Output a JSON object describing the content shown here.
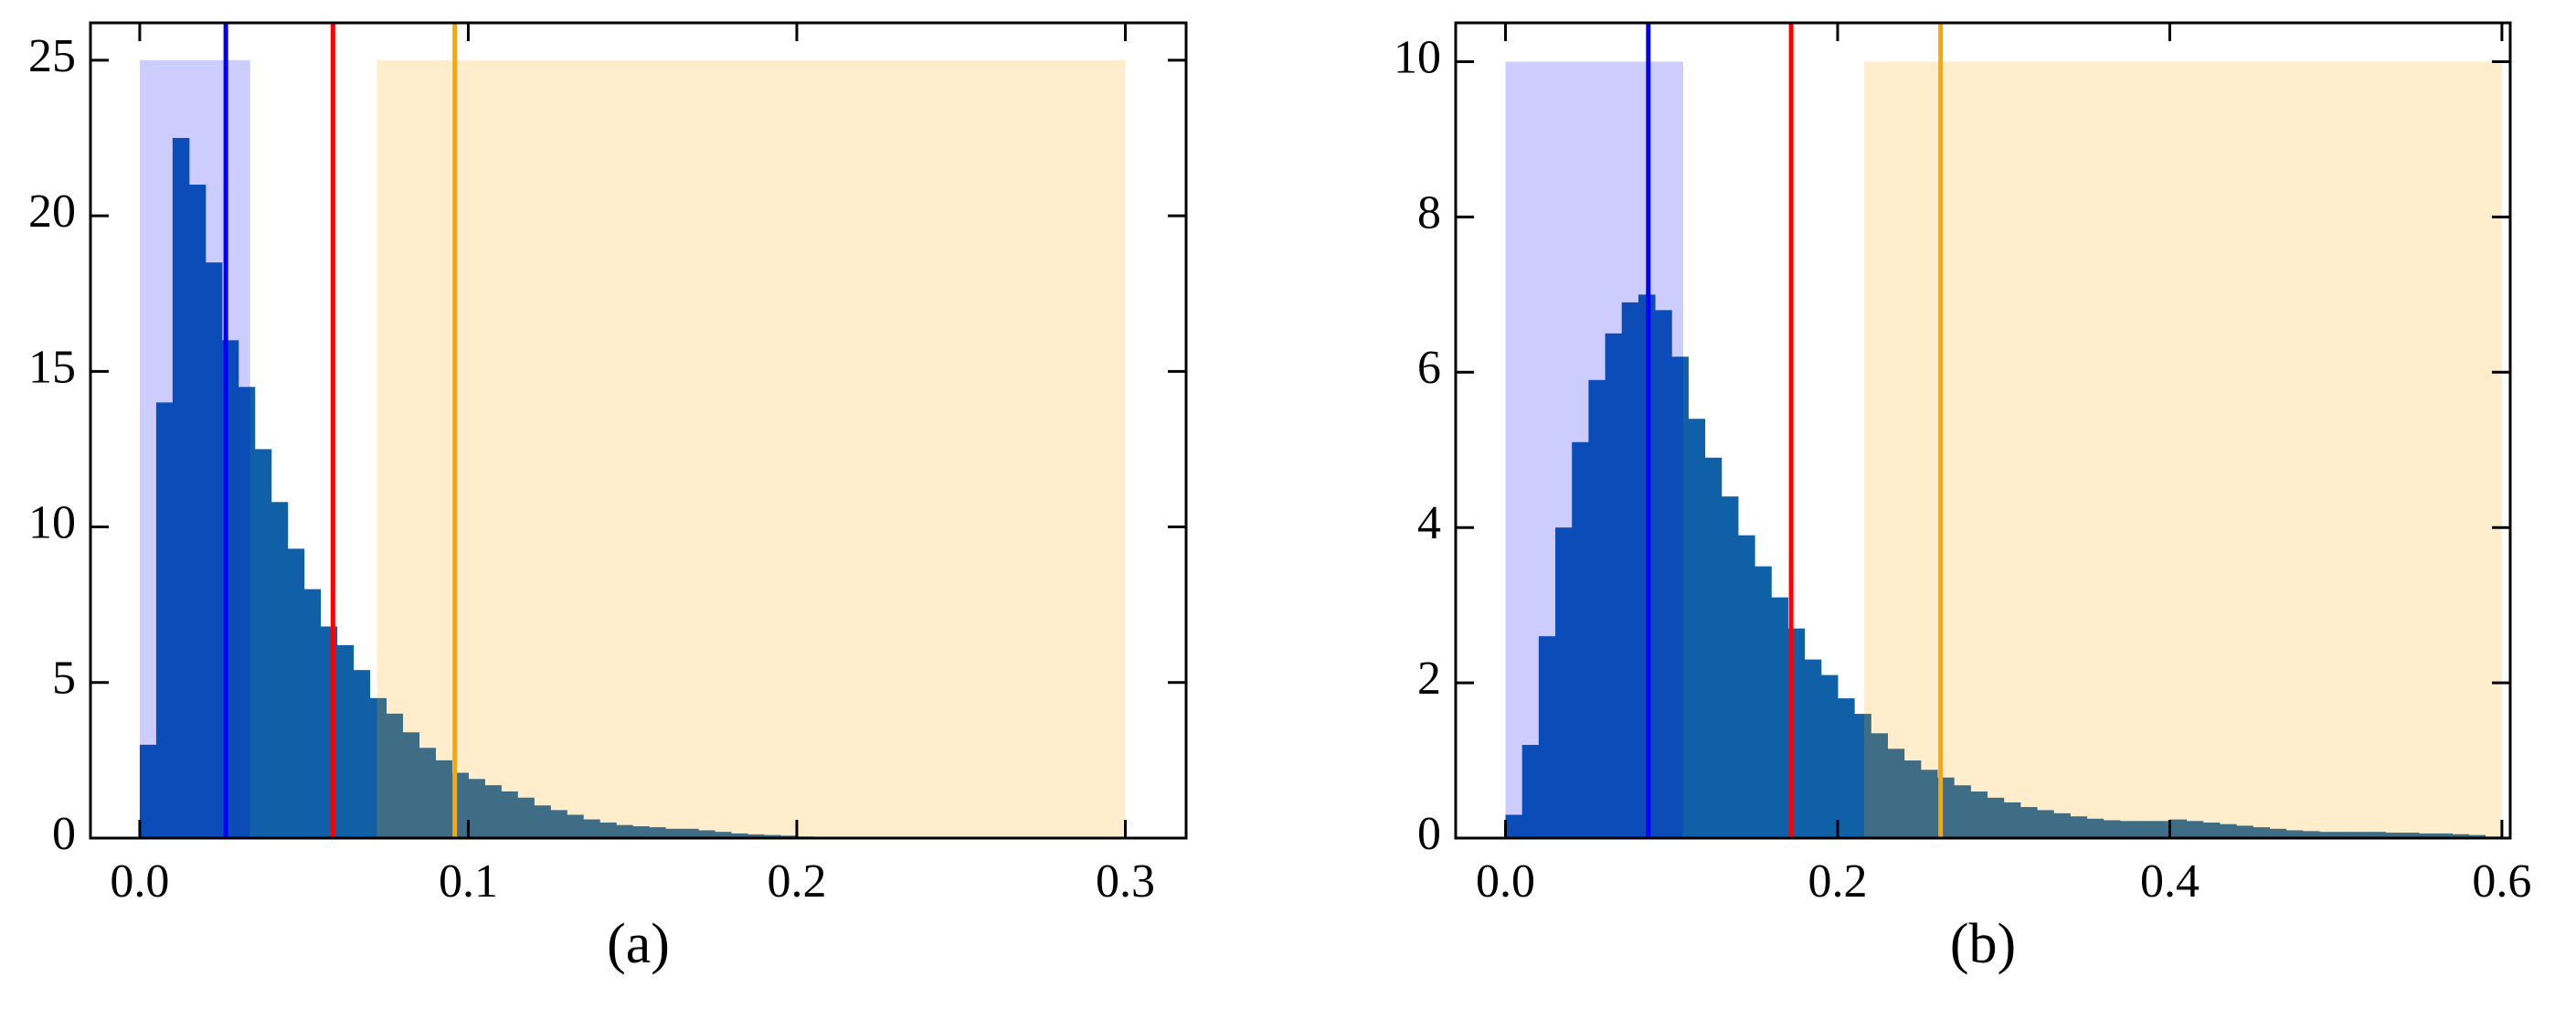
{
  "chart_data": [
    {
      "type": "histogram",
      "xlabel": "(a)",
      "color": "#1060a8",
      "bins": [
        0,
        0.005,
        0.01,
        0.015,
        0.02,
        0.025,
        0.03,
        0.035,
        0.04,
        0.045,
        0.05,
        0.055,
        0.06,
        0.065,
        0.07,
        0.075,
        0.08,
        0.085,
        0.09,
        0.095,
        0.1,
        0.105,
        0.11,
        0.115,
        0.12,
        0.125,
        0.13,
        0.135,
        0.14,
        0.145,
        0.15,
        0.155,
        0.16,
        0.165,
        0.17,
        0.175,
        0.18,
        0.185,
        0.19,
        0.195,
        0.2,
        0.205,
        0.21,
        0.215,
        0.22,
        0.225,
        0.23,
        0.235,
        0.24,
        0.245,
        0.25,
        0.255,
        0.26,
        0.265,
        0.27,
        0.275,
        0.28,
        0.285,
        0.29,
        0.295,
        0.3
      ],
      "values": [
        3,
        14,
        22.5,
        21,
        18.5,
        16,
        14.5,
        12.5,
        10.8,
        9.3,
        8,
        6.8,
        6.2,
        5.4,
        4.5,
        4.0,
        3.4,
        2.9,
        2.5,
        2.1,
        1.9,
        1.7,
        1.5,
        1.3,
        1.05,
        0.9,
        0.75,
        0.6,
        0.5,
        0.42,
        0.38,
        0.35,
        0.3,
        0.3,
        0.25,
        0.2,
        0.15,
        0.12,
        0.1,
        0.08,
        0.05,
        0.04,
        0.03,
        0.03,
        0.02,
        0.02,
        0.02,
        0.01,
        0.01,
        0.01,
        0.01,
        0.01,
        0,
        0,
        0,
        0,
        0,
        0,
        0,
        0
      ],
      "spans": [
        {
          "x": [
            0,
            0.0336
          ],
          "y": [
            0,
            25
          ],
          "color": "#0000ff",
          "alpha": 0.2
        },
        {
          "x": [
            0.0722,
            0.3
          ],
          "y": [
            0,
            25
          ],
          "color": "#ffa500",
          "alpha": 0.2
        }
      ],
      "vlines": [
        {
          "x": 0.0262,
          "color": "#0000ff"
        },
        {
          "x": 0.0588,
          "color": "#ff0000"
        },
        {
          "x": 0.0959,
          "color": "#ffa500"
        }
      ],
      "xlim": [
        -0.015,
        0.3185
      ],
      "ylim": [
        0,
        26.2
      ],
      "xticks": [
        {
          "value": 0,
          "label": "0.0"
        },
        0.1,
        0.2,
        0.3
      ],
      "yticks": [
        0,
        5,
        10,
        15,
        20,
        25
      ]
    },
    {
      "type": "histogram",
      "xlabel": "(b)",
      "color": "#1060a8",
      "bins": [
        0,
        0.01,
        0.02,
        0.03,
        0.04,
        0.05,
        0.06,
        0.07,
        0.08,
        0.09,
        0.1,
        0.11,
        0.12,
        0.13,
        0.14,
        0.15,
        0.16,
        0.17,
        0.18,
        0.19,
        0.2,
        0.21,
        0.22,
        0.23,
        0.24,
        0.25,
        0.26,
        0.27,
        0.28,
        0.29,
        0.3,
        0.31,
        0.32,
        0.33,
        0.34,
        0.35,
        0.36,
        0.37,
        0.38,
        0.39,
        0.4,
        0.41,
        0.42,
        0.43,
        0.44,
        0.45,
        0.46,
        0.47,
        0.48,
        0.49,
        0.5,
        0.51,
        0.52,
        0.53,
        0.54,
        0.55,
        0.56,
        0.57,
        0.58,
        0.59,
        0.6
      ],
      "values": [
        0.3,
        1.2,
        2.6,
        4.0,
        5.1,
        5.9,
        6.5,
        6.9,
        7.0,
        6.8,
        6.2,
        5.4,
        4.9,
        4.4,
        3.9,
        3.5,
        3.1,
        2.7,
        2.3,
        2.1,
        1.8,
        1.6,
        1.35,
        1.15,
        1.0,
        0.88,
        0.78,
        0.68,
        0.6,
        0.52,
        0.46,
        0.4,
        0.36,
        0.32,
        0.28,
        0.25,
        0.23,
        0.22,
        0.22,
        0.22,
        0.24,
        0.22,
        0.2,
        0.18,
        0.16,
        0.14,
        0.12,
        0.1,
        0.09,
        0.08,
        0.08,
        0.08,
        0.08,
        0.07,
        0.07,
        0.06,
        0.06,
        0.05,
        0.04,
        0.02
      ],
      "spans": [
        {
          "x": [
            0,
            0.107
          ],
          "y": [
            0,
            10
          ],
          "color": "#0000ff",
          "alpha": 0.2
        },
        {
          "x": [
            0.216,
            0.6
          ],
          "y": [
            0,
            10
          ],
          "color": "#ffa500",
          "alpha": 0.2
        }
      ],
      "vlines": [
        {
          "x": 0.086,
          "color": "#0000ff"
        },
        {
          "x": 0.172,
          "color": "#ff0000"
        },
        {
          "x": 0.262,
          "color": "#ffa500"
        }
      ],
      "xlim": [
        -0.03,
        0.605
      ],
      "ylim": [
        0,
        10.5
      ],
      "xticks": [
        {
          "value": 0,
          "label": "0.0"
        },
        0.2,
        0.4,
        0.6
      ],
      "yticks": [
        0,
        2,
        4,
        6,
        8,
        10
      ]
    }
  ]
}
